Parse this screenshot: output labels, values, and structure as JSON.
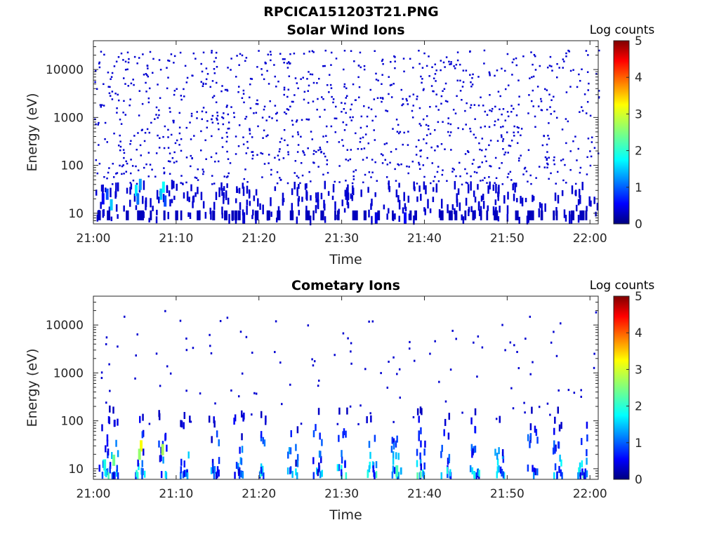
{
  "figure": {
    "title": "RPCICA151203T21.PNG"
  },
  "chart_data": [
    {
      "type": "heatmap",
      "title": "Solar Wind Ions",
      "xlabel": "Time",
      "ylabel": "Energy (eV)",
      "x_ticks": [
        "21:00",
        "21:10",
        "21:20",
        "21:30",
        "21:40",
        "21:50",
        "22:00"
      ],
      "x_range_minutes": [
        0,
        61
      ],
      "y_scale": "log",
      "y_ticks": [
        10,
        100,
        1000,
        10000
      ],
      "y_ticks_labels": [
        "10",
        "100",
        "1000",
        "10000"
      ],
      "ylim": [
        6,
        40000
      ],
      "colorbar": {
        "label": "Log counts",
        "ticks": [
          "0",
          "1",
          "2",
          "3",
          "4",
          "5"
        ],
        "range": [
          0,
          5
        ],
        "colormap": "jet"
      },
      "description_of_values": "Sparse isolated counts (~0.5 log counts) scattered from 10 eV to 20000 eV; stronger counts (~1-2) near 10-40 eV around 21:05 and 21:08.",
      "cells": [
        {
          "t": 1.0,
          "e": 20,
          "v": 0.6
        },
        {
          "t": 1.5,
          "e": 25,
          "v": 1.0
        },
        {
          "t": 2.0,
          "e": 15,
          "v": 1.6
        },
        {
          "t": 5.0,
          "e": 30,
          "v": 1.8
        },
        {
          "t": 5.5,
          "e": 40,
          "v": 1.4
        },
        {
          "t": 5.2,
          "e": 20,
          "v": 1.2
        },
        {
          "t": 8.0,
          "e": 25,
          "v": 1.6
        },
        {
          "t": 8.5,
          "e": 18,
          "v": 1.0
        },
        {
          "t": 8.3,
          "e": 35,
          "v": 1.9
        },
        {
          "t": 18.0,
          "e": 8,
          "v": 0.4
        },
        {
          "t": 34.0,
          "e": 8,
          "v": 0.5
        },
        {
          "t": 37.5,
          "e": 8,
          "v": 0.6
        }
      ]
    },
    {
      "type": "heatmap",
      "title": "Cometary Ions",
      "xlabel": "Time",
      "ylabel": "Energy (eV)",
      "x_ticks": [
        "21:00",
        "21:10",
        "21:20",
        "21:30",
        "21:40",
        "21:50",
        "22:00"
      ],
      "x_range_minutes": [
        0,
        61
      ],
      "y_scale": "log",
      "y_ticks": [
        10,
        100,
        1000,
        10000
      ],
      "y_ticks_labels": [
        "10",
        "100",
        "1000",
        "10000"
      ],
      "ylim": [
        6,
        40000
      ],
      "colorbar": {
        "label": "Log counts",
        "ticks": [
          "0",
          "1",
          "2",
          "3",
          "4",
          "5"
        ],
        "range": [
          0,
          5
        ],
        "colormap": "jet"
      },
      "description_of_values": "Periodic vertical bursts every ~3 min concentrated below 100 eV with peaks ~2-3 log counts near 10-40 eV; strongest bursts at 21:05-21:06 and 21:08; sparse high-energy counts.",
      "bursts_minutes": [
        1.2,
        2.3,
        5.5,
        8.3,
        11.0,
        14.5,
        17.5,
        20.5,
        24.0,
        27.0,
        30.0,
        33.5,
        36.5,
        39.5,
        42.5,
        46.0,
        49.0,
        53.0,
        56.0,
        59.0
      ],
      "cells": [
        {
          "t": 5.6,
          "e": 30,
          "v": 3.1
        },
        {
          "t": 5.4,
          "e": 20,
          "v": 2.6
        },
        {
          "t": 8.2,
          "e": 25,
          "v": 2.7
        },
        {
          "t": 2.3,
          "e": 15,
          "v": 2.4
        },
        {
          "t": 1.2,
          "e": 12,
          "v": 2.0
        },
        {
          "t": 36.5,
          "e": 9,
          "v": 2.2
        }
      ]
    }
  ]
}
